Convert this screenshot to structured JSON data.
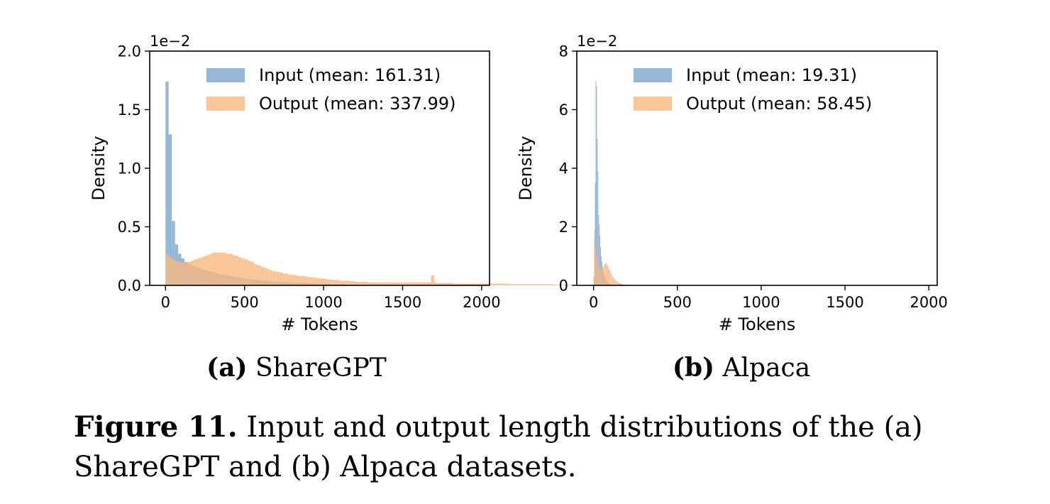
{
  "chart_data": [
    {
      "type": "bar",
      "subtype": "overlaid-histogram",
      "subcaption_letter": "(a)",
      "subcaption_name": "ShareGPT",
      "xlabel": "# Tokens",
      "ylabel": "Density",
      "y_offset_label": "1e−2",
      "xlim": [
        -100,
        2050
      ],
      "ylim": [
        0,
        2.0
      ],
      "xticks": [
        0,
        500,
        1000,
        1500,
        2000
      ],
      "yticks": [
        "0.0",
        "0.5",
        "1.0",
        "1.5",
        "2.0"
      ],
      "grid": false,
      "legend_position": "top-right",
      "bin_width": 20,
      "series": [
        {
          "name": "Input (mean: 161.31)",
          "color": "#7ba6d0",
          "bin_start": 0,
          "values": [
            1.74,
            1.29,
            0.55,
            0.35,
            0.27,
            0.23,
            0.2,
            0.18,
            0.17,
            0.16,
            0.15,
            0.14,
            0.13,
            0.12,
            0.115,
            0.11,
            0.1,
            0.095,
            0.09,
            0.085,
            0.08,
            0.075,
            0.07,
            0.065,
            0.06,
            0.057,
            0.054,
            0.051,
            0.048,
            0.045,
            0.042,
            0.04,
            0.038,
            0.036,
            0.034,
            0.032,
            0.03,
            0.028,
            0.026,
            0.025,
            0.024,
            0.023,
            0.022,
            0.021,
            0.02,
            0.019,
            0.018,
            0.017,
            0.016,
            0.015,
            0.014,
            0.013,
            0.012,
            0.011,
            0.01,
            0.009,
            0.008,
            0.007,
            0.006,
            0.005
          ]
        },
        {
          "name": "Output (mean: 337.99)",
          "color": "#f5b77e",
          "bin_start": 0,
          "values": [
            0.26,
            0.24,
            0.22,
            0.21,
            0.2,
            0.2,
            0.2,
            0.2,
            0.21,
            0.22,
            0.23,
            0.24,
            0.25,
            0.26,
            0.27,
            0.28,
            0.28,
            0.28,
            0.28,
            0.27,
            0.27,
            0.26,
            0.25,
            0.24,
            0.23,
            0.22,
            0.21,
            0.2,
            0.18,
            0.17,
            0.16,
            0.15,
            0.14,
            0.13,
            0.12,
            0.115,
            0.11,
            0.1,
            0.1,
            0.09,
            0.09,
            0.085,
            0.08,
            0.08,
            0.075,
            0.07,
            0.07,
            0.065,
            0.06,
            0.06,
            0.055,
            0.05,
            0.05,
            0.045,
            0.045,
            0.04,
            0.04,
            0.04,
            0.035,
            0.035,
            0.03,
            0.03,
            0.03,
            0.03,
            0.025,
            0.025,
            0.025,
            0.025,
            0.025,
            0.025,
            0.025,
            0.025,
            0.025,
            0.025,
            0.025,
            0.025,
            0.025,
            0.025,
            0.025,
            0.025,
            0.025,
            0.025,
            0.025,
            0.025,
            0.085,
            0.025,
            0.02,
            0.02,
            0.02,
            0.02,
            0.02,
            0.015,
            0.015,
            0.015,
            0.015,
            0.015,
            0.015,
            0.015,
            0.015,
            0.015,
            0.015,
            0.015,
            0.015,
            0.015,
            0.015,
            0.015,
            0.015,
            0.015,
            0.015,
            0.01,
            0.01,
            0.01,
            0.01,
            0.01,
            0.01,
            0.01,
            0.01,
            0.01,
            0.01,
            0.01,
            0.01,
            0.01,
            0.01,
            0.005,
            0.005,
            0.005,
            0.005,
            0.005,
            0.005,
            0.005
          ]
        }
      ]
    },
    {
      "type": "bar",
      "subtype": "overlaid-histogram",
      "subcaption_letter": "(b)",
      "subcaption_name": "Alpaca",
      "xlabel": "# Tokens",
      "ylabel": "Density",
      "y_offset_label": "1e−2",
      "xlim": [
        -100,
        2050
      ],
      "ylim": [
        0,
        8
      ],
      "xticks": [
        0,
        500,
        1000,
        1500,
        2000
      ],
      "yticks": [
        "0",
        "2",
        "4",
        "6",
        "8"
      ],
      "grid": false,
      "legend_position": "top-right",
      "bin_width": 4,
      "series": [
        {
          "name": "Input (mean: 19.31)",
          "color": "#7ba6d0",
          "bin_start": 0,
          "values": [
            0.3,
            1.6,
            3.5,
            7.0,
            6.8,
            5.0,
            3.9,
            2.4,
            2.1,
            1.7,
            1.3,
            1.0,
            0.8,
            0.6,
            0.5,
            0.4,
            0.3,
            0.25,
            0.2,
            0.15,
            0.12,
            0.1,
            0.08,
            0.06,
            0.05,
            0.04,
            0.03,
            0.02
          ]
        },
        {
          "name": "Output (mean: 58.45)",
          "color": "#f5b77e",
          "bin_start": 0,
          "values": [
            0.3,
            1.9,
            1.5,
            1.3,
            1.1,
            0.95,
            0.8,
            0.7,
            0.6,
            0.55,
            0.5,
            0.5,
            0.55,
            0.6,
            0.65,
            0.7,
            0.72,
            0.75,
            0.75,
            0.72,
            0.7,
            0.65,
            0.6,
            0.55,
            0.5,
            0.45,
            0.4,
            0.35,
            0.3,
            0.27,
            0.24,
            0.21,
            0.18,
            0.16,
            0.14,
            0.12,
            0.1,
            0.09,
            0.08,
            0.07,
            0.06,
            0.05,
            0.04,
            0.035,
            0.03,
            0.025,
            0.02,
            0.015,
            0.01,
            0.01
          ]
        }
      ]
    }
  ],
  "caption": {
    "label": "Figure 11.",
    "text": " Input and output length distributions of the (a) ShareGPT and (b) Alpaca datasets."
  }
}
